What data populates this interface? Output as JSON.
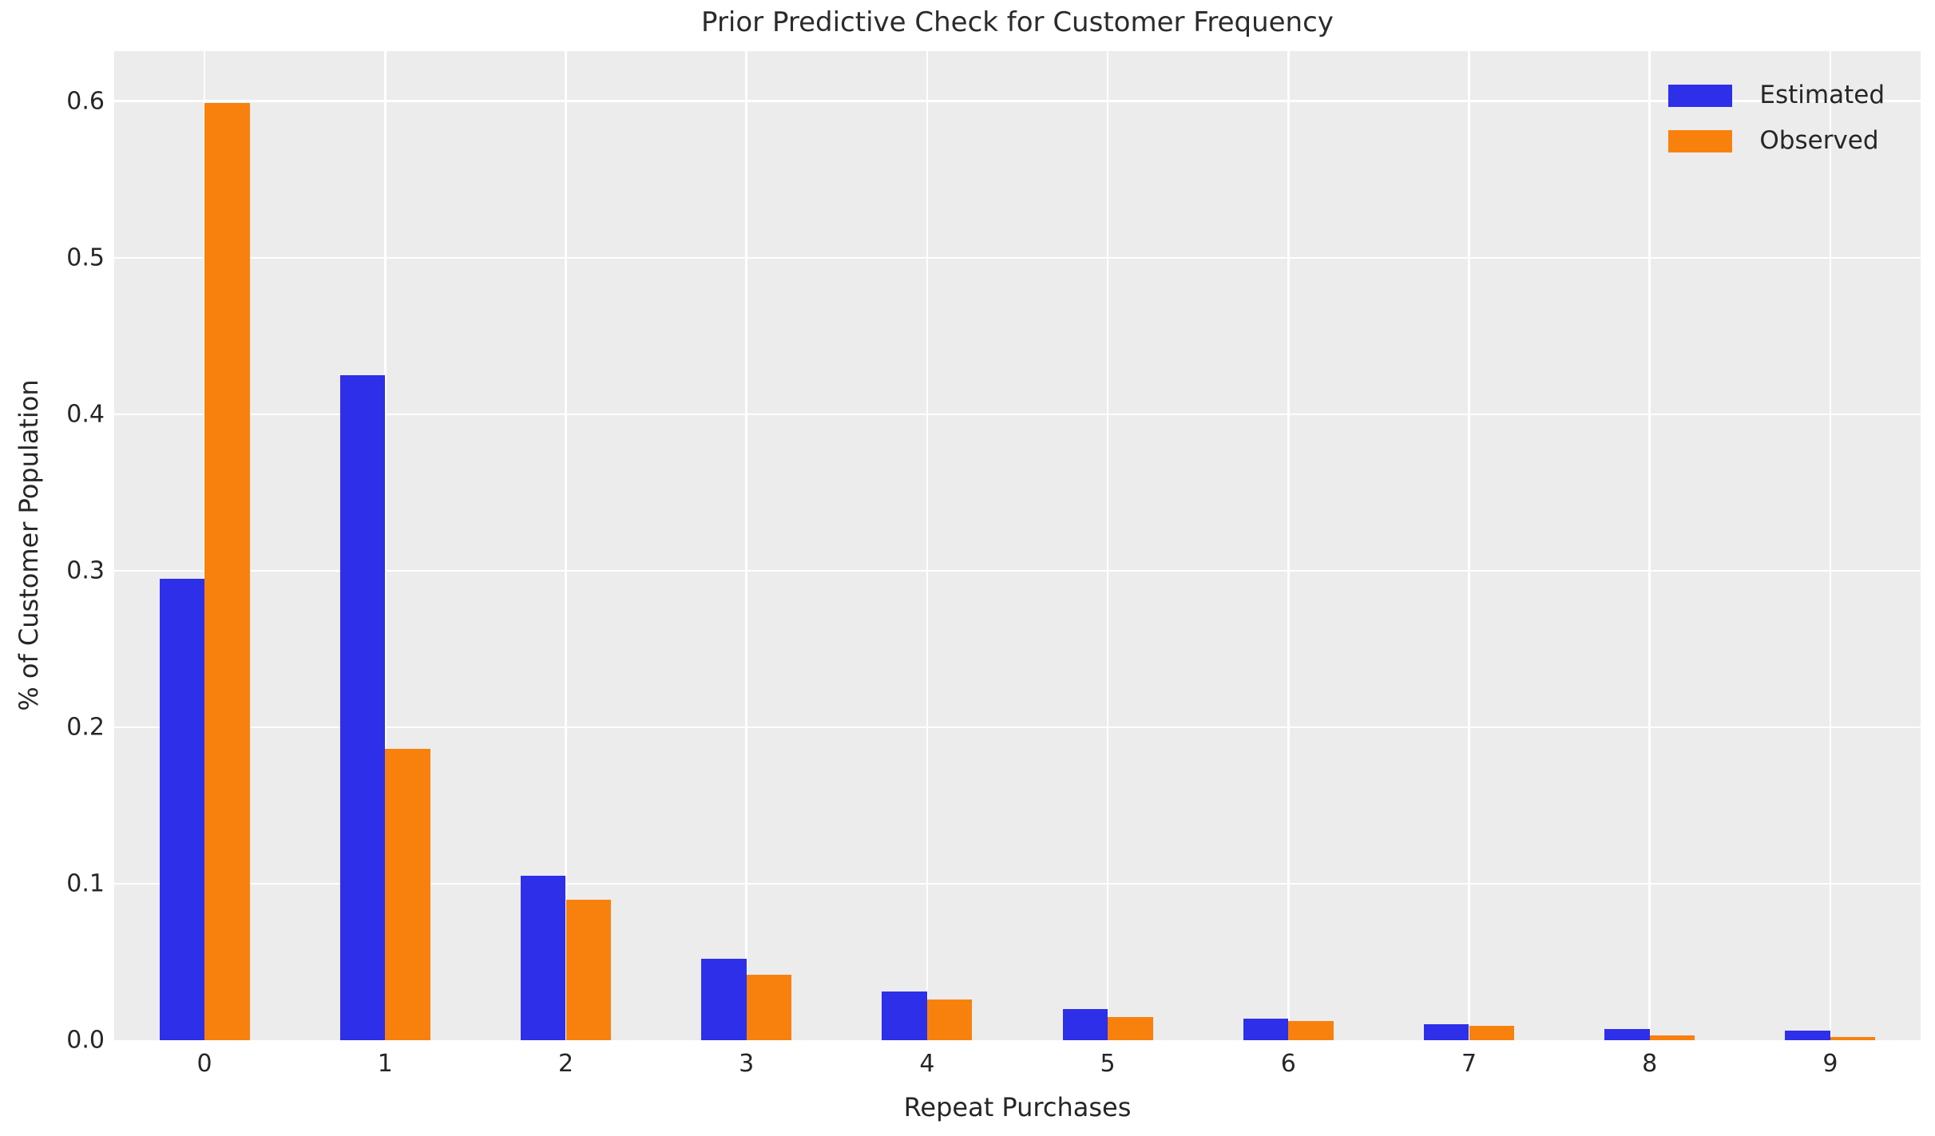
{
  "chart_data": {
    "type": "bar",
    "title": "Prior Predictive Check for Customer Frequency",
    "xlabel": "Repeat Purchases",
    "ylabel": "% of Customer Population",
    "categories": [
      "0",
      "1",
      "2",
      "3",
      "4",
      "5",
      "6",
      "7",
      "8",
      "9"
    ],
    "series": [
      {
        "name": "Estimated",
        "color": "#2e2fe8",
        "values": [
          0.295,
          0.425,
          0.105,
          0.052,
          0.031,
          0.02,
          0.014,
          0.01,
          0.007,
          0.006
        ]
      },
      {
        "name": "Observed",
        "color": "#f8810e",
        "values": [
          0.599,
          0.186,
          0.09,
          0.042,
          0.026,
          0.015,
          0.012,
          0.009,
          0.003,
          0.002
        ]
      }
    ],
    "ylim": [
      0,
      0.632
    ],
    "yticks": [
      0.0,
      0.1,
      0.2,
      0.3,
      0.4,
      0.5,
      0.6
    ],
    "ytick_labels": [
      "0.0",
      "0.1",
      "0.2",
      "0.3",
      "0.4",
      "0.5",
      "0.6"
    ],
    "grid": true,
    "legend_position": "upper right",
    "colors": {
      "plot_bg": "#ececec",
      "grid": "#ffffff",
      "text": "#262626",
      "page_bg": "#ffffff"
    }
  }
}
